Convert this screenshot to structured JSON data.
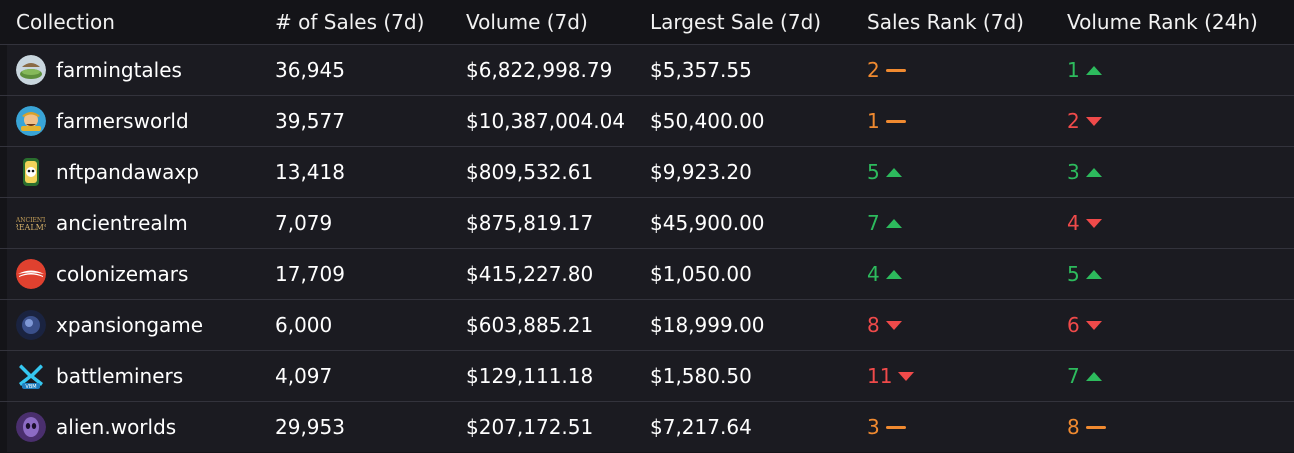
{
  "colors": {
    "up": "#2dbb5d",
    "down": "#f04a4a",
    "same": "#f08a30"
  },
  "headers": {
    "collection": "Collection",
    "sales": "# of Sales (7d)",
    "volume": "Volume (7d)",
    "largest": "Largest Sale (7d)",
    "sales_rank": "Sales Rank (7d)",
    "volume_rank": "Volume Rank (24h)"
  },
  "rows": [
    {
      "name": "farmingtales",
      "avatar": "farmingtales-logo",
      "sales": "36,945",
      "volume": "$6,822,998.79",
      "largest": "$5,357.55",
      "sales_rank": "2",
      "sales_trend": "same",
      "volume_rank": "1",
      "volume_trend": "up"
    },
    {
      "name": "farmersworld",
      "avatar": "farmersworld-logo",
      "sales": "39,577",
      "volume": "$10,387,004.04",
      "largest": "$50,400.00",
      "sales_rank": "1",
      "sales_trend": "same",
      "volume_rank": "2",
      "volume_trend": "down"
    },
    {
      "name": "nftpandawaxp",
      "avatar": "nftpanda-logo",
      "sales": "13,418",
      "volume": "$809,532.61",
      "largest": "$9,923.20",
      "sales_rank": "5",
      "sales_trend": "up",
      "volume_rank": "3",
      "volume_trend": "up"
    },
    {
      "name": "ancientrealm",
      "avatar": "ancient-realms-logo",
      "sales": "7,079",
      "volume": "$875,819.17",
      "largest": "$45,900.00",
      "sales_rank": "7",
      "sales_trend": "up",
      "volume_rank": "4",
      "volume_trend": "down"
    },
    {
      "name": "colonizemars",
      "avatar": "colonizemars-logo",
      "sales": "17,709",
      "volume": "$415,227.80",
      "largest": "$1,050.00",
      "sales_rank": "4",
      "sales_trend": "up",
      "volume_rank": "5",
      "volume_trend": "up"
    },
    {
      "name": "xpansiongame",
      "avatar": "xpansion-logo",
      "sales": "6,000",
      "volume": "$603,885.21",
      "largest": "$18,999.00",
      "sales_rank": "8",
      "sales_trend": "down",
      "volume_rank": "6",
      "volume_trend": "down"
    },
    {
      "name": "battleminers",
      "avatar": "battleminers-logo",
      "sales": "4,097",
      "volume": "$129,111.18",
      "largest": "$1,580.50",
      "sales_rank": "11",
      "sales_trend": "down",
      "volume_rank": "7",
      "volume_trend": "up"
    },
    {
      "name": "alien.worlds",
      "avatar": "alienworlds-logo",
      "sales": "29,953",
      "volume": "$207,172.51",
      "largest": "$7,217.64",
      "sales_rank": "3",
      "sales_trend": "same",
      "volume_rank": "8",
      "volume_trend": "same"
    }
  ]
}
